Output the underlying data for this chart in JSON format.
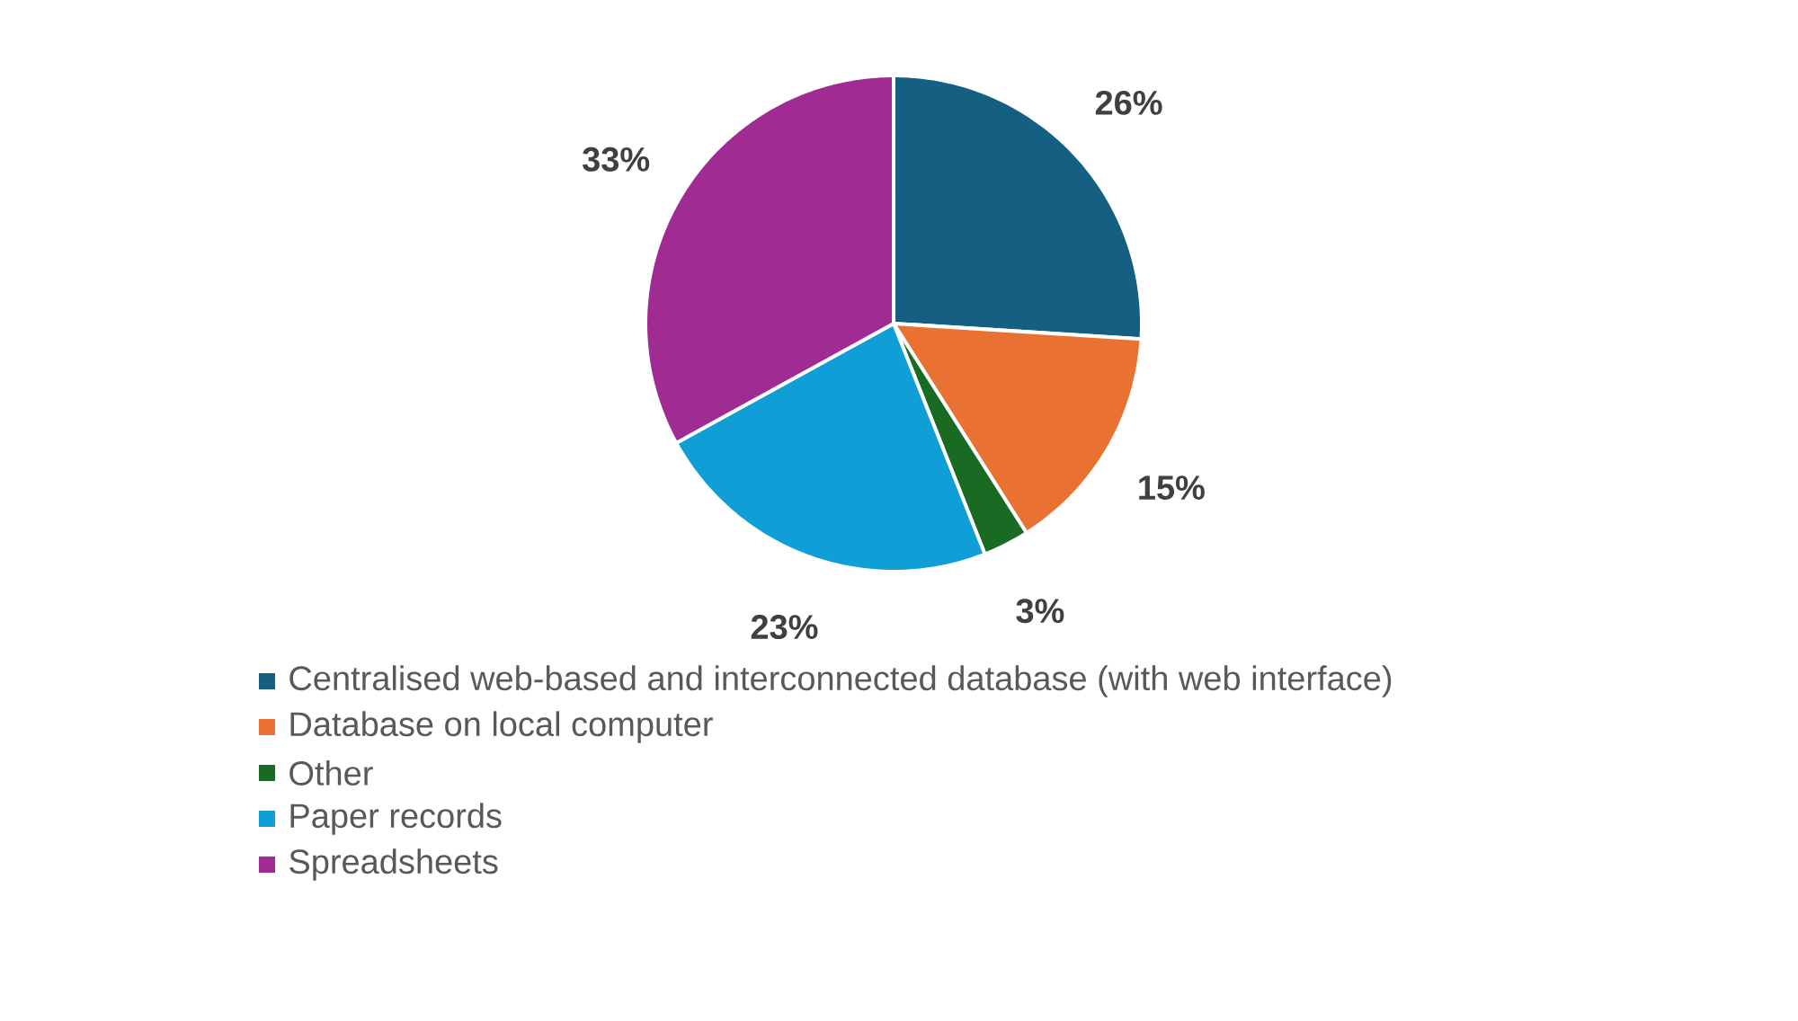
{
  "chart_data": {
    "type": "pie",
    "categories": [
      "Centralised web-based and interconnected database (with web interface)",
      "Database on local computer",
      "Other",
      "Paper records",
      "Spreadsheets"
    ],
    "values": [
      26,
      15,
      3,
      23,
      33
    ],
    "colors": [
      "#156082",
      "#e97132",
      "#196b24",
      "#0f9ed5",
      "#a02b93"
    ],
    "value_labels": [
      "26%",
      "15%",
      "3%",
      "23%",
      "33%"
    ],
    "legend": "bottom"
  }
}
